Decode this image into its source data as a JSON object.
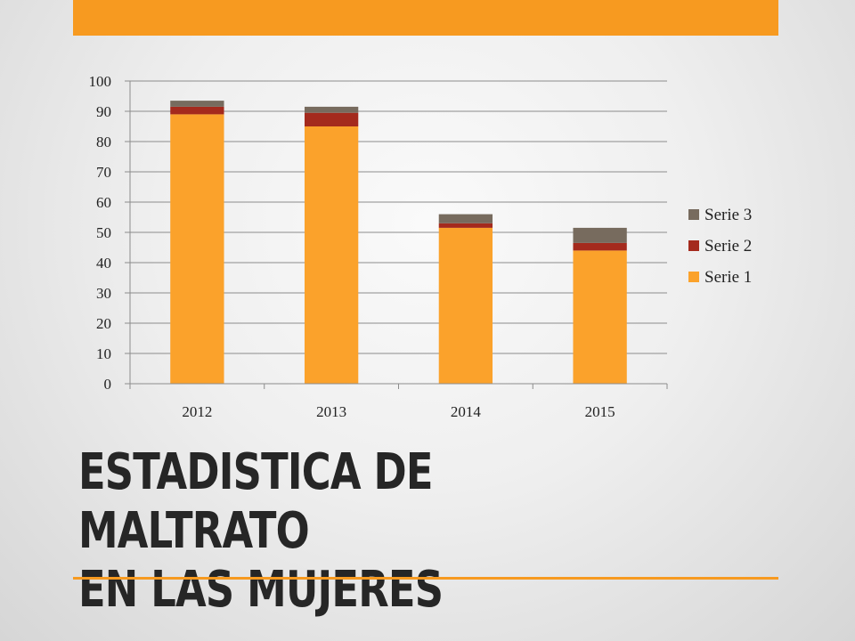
{
  "slide": {
    "title_lines": [
      "ESTADISTICA DE MALTRATO",
      "EN LAS MUJERES"
    ],
    "accent_color": "#f79a20"
  },
  "chart_data": {
    "type": "bar",
    "stacked": true,
    "categories": [
      "2012",
      "2013",
      "2014",
      "2015"
    ],
    "series": [
      {
        "name": "Serie 1",
        "values": [
          89,
          85,
          51.5,
          44
        ],
        "color": "#fba22b"
      },
      {
        "name": "Serie 2",
        "values": [
          2.5,
          4.5,
          1.5,
          2.5
        ],
        "color": "#a42a1d"
      },
      {
        "name": "Serie 3",
        "values": [
          2,
          2,
          3,
          5
        ],
        "color": "#776b5e"
      }
    ],
    "ylim": [
      0,
      100
    ],
    "yticks": [
      0,
      10,
      20,
      30,
      40,
      50,
      60,
      70,
      80,
      90,
      100
    ],
    "grid": true,
    "legend": "right"
  }
}
